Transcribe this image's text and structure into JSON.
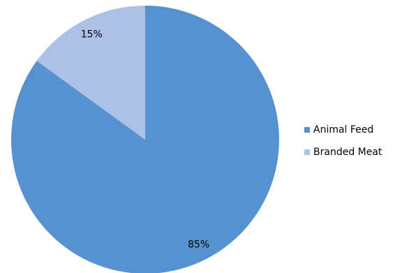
{
  "chart_data": {
    "type": "pie",
    "categories": [
      "Animal Feed",
      "Branded Meat"
    ],
    "values": [
      85,
      15
    ],
    "data_labels": [
      "85%",
      "15%"
    ],
    "colors": [
      "#5592cf",
      "#adc1e6"
    ],
    "start_angle_deg": 0,
    "direction": "clockwise",
    "legend": "right"
  }
}
